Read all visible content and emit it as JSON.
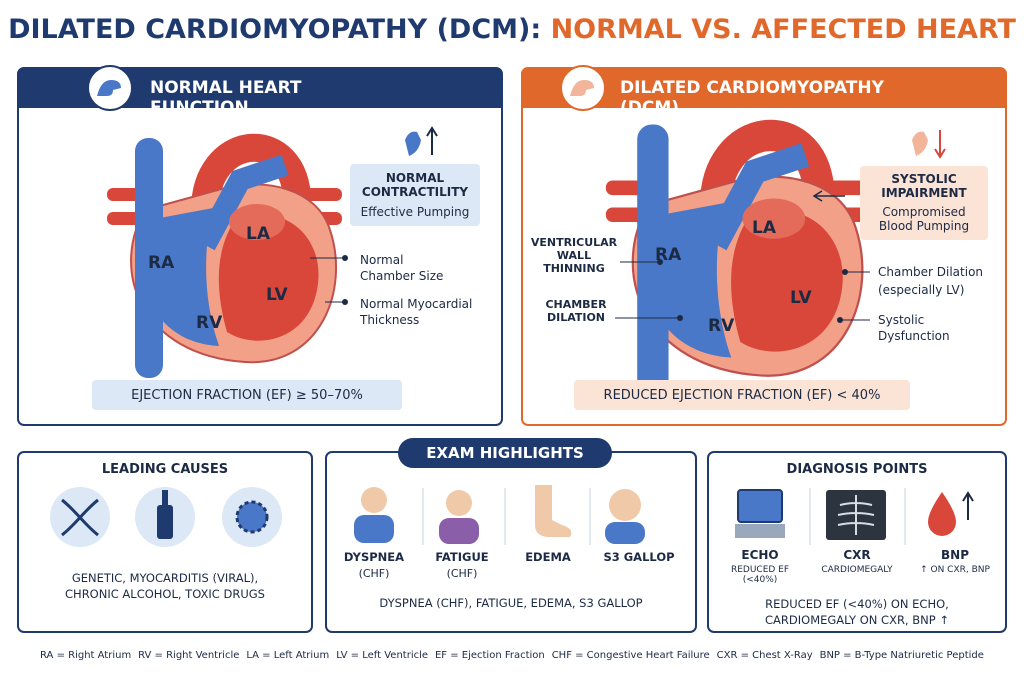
{
  "title": {
    "part1": "DILATED CARDIOMYOPATHY (DCM):",
    "part2": "NORMAL VS. AFFECTED HEART"
  },
  "normal_panel": {
    "header": "NORMAL HEART FUNCTION",
    "chambers": [
      "RA",
      "LA",
      "LV",
      "RV"
    ],
    "callout": {
      "title": "NORMAL CONTRACTILITY",
      "subtitle": "Effective Pumping"
    },
    "annotations": [
      "Normal Chamber Size",
      "Normal Myocardial Thickness"
    ],
    "footer": "EJECTION FRACTION (EF) ≥ 50–70%"
  },
  "dcm_panel": {
    "header": "DILATED CARDIOMYOPATHY (DCM)",
    "chambers": [
      "RA",
      "LA",
      "LV",
      "RV"
    ],
    "callout": {
      "title": "SYSTOLIC IMPAIRMENT",
      "subtitle": "Compromised Blood Pumping"
    },
    "left_annotations": [
      "VENTRICULAR WALL THINNING",
      "CHAMBER DILATION"
    ],
    "right_annotations": [
      {
        "label": "Chamber Dilation",
        "sub": "(especially LV)"
      },
      {
        "label": "Systolic Dysfunction"
      }
    ],
    "footer": "REDUCED EJECTION FRACTION (EF) < 40%"
  },
  "exam_highlights": {
    "title": "EXAM HIGHLIGHTS",
    "causes": {
      "title": "LEADING CAUSES",
      "text": "GENETIC, MYOCARDITIS (VIRAL), CHRONIC ALCOHOL, TOXIC DRUGS"
    },
    "signs": {
      "items": [
        {
          "label": "DYSPNEA",
          "sub": "(CHF)"
        },
        {
          "label": "FATIGUE",
          "sub": "(CHF)"
        },
        {
          "label": "EDEMA"
        },
        {
          "label": "S3 GALLOP"
        }
      ],
      "summary": "DYSPNEA (CHF), FATIGUE, EDEMA, S3 GALLOP"
    },
    "diagnosis": {
      "title": "DIAGNOSIS POINTS",
      "items": [
        {
          "label": "ECHO",
          "sub": "REDUCED EF (<40%)"
        },
        {
          "label": "CXR",
          "sub": "CARDIOMEGALY"
        },
        {
          "label": "BNP",
          "sub": "↑ ON CXR, BNP"
        }
      ],
      "summary": "REDUCED EF (<40%) ON ECHO, CARDIOMEGALY ON CXR, BNP ↑"
    }
  },
  "legend": [
    "RA = Right Atrium",
    "RV = Right Ventricle",
    "LA = Left Atrium",
    "LV = Left Ventricle",
    "EF = Ejection Fraction",
    "CHF = Congestive Heart Failure",
    "CXR = Chest X-Ray",
    "BNP = B-Type Natriuretic Peptide"
  ]
}
